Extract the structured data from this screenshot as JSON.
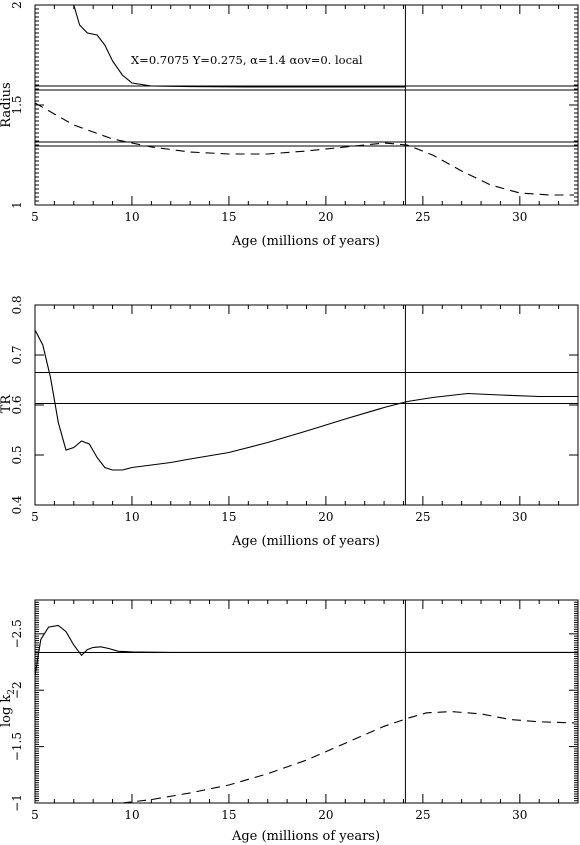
{
  "chart_data": [
    {
      "type": "line",
      "xlabel": "Age (millions of years)",
      "ylabel": "Radius",
      "xlim": [
        5,
        33
      ],
      "ylim": [
        1,
        2
      ],
      "xticks": [
        5,
        10,
        15,
        20,
        25,
        30
      ],
      "xtick_labels": [
        "5",
        "10",
        "15",
        "20",
        "25",
        "30"
      ],
      "yticks": [
        1,
        1.5,
        2
      ],
      "ytick_labels": [
        "1",
        "1.5",
        "2"
      ],
      "annotation": "X=0.7075   Y=0.275, α=1.4  αov=0. local",
      "series": [
        {
          "style": "solid",
          "x": [
            7.0,
            7.3,
            7.7,
            8.2,
            8.6,
            9.0,
            9.5,
            10.0,
            11.0,
            13.0,
            16.0,
            20.0,
            24.1
          ],
          "y": [
            2.0,
            1.9,
            1.86,
            1.85,
            1.8,
            1.72,
            1.65,
            1.61,
            1.595,
            1.592,
            1.59,
            1.59,
            1.59
          ]
        },
        {
          "style": "dashed",
          "x": [
            5,
            7,
            9,
            11,
            13,
            15,
            17,
            19,
            21,
            23,
            24.2,
            25.5,
            27,
            28.5,
            30,
            31.5,
            32.8
          ],
          "y": [
            1.51,
            1.4,
            1.33,
            1.29,
            1.265,
            1.255,
            1.255,
            1.27,
            1.29,
            1.31,
            1.3,
            1.25,
            1.17,
            1.1,
            1.06,
            1.05,
            1.05
          ]
        }
      ],
      "hlines": [
        1.595,
        1.575,
        1.315,
        1.295
      ],
      "vline": 24.1
    },
    {
      "type": "line",
      "xlabel": "Age (millions of years)",
      "ylabel": "TR",
      "xlim": [
        5,
        33
      ],
      "ylim": [
        0.4,
        0.8
      ],
      "xticks": [
        5,
        10,
        15,
        20,
        25,
        30
      ],
      "xtick_labels": [
        "5",
        "10",
        "15",
        "20",
        "25",
        "30"
      ],
      "yticks": [
        0.4,
        0.5,
        0.6,
        0.7,
        0.8
      ],
      "ytick_labels": [
        "0.4",
        "0.5",
        "0.6",
        "0.7",
        "0.8"
      ],
      "series": [
        {
          "style": "solid",
          "x": [
            5,
            5.4,
            5.8,
            6.2,
            6.6,
            7.0,
            7.4,
            7.8,
            8.2,
            8.6,
            9.0,
            9.5,
            10,
            11,
            12,
            13,
            15,
            17,
            19,
            21,
            23,
            24.2,
            25.5,
            27.3,
            29,
            31,
            33
          ],
          "y": [
            0.75,
            0.72,
            0.655,
            0.565,
            0.51,
            0.515,
            0.528,
            0.522,
            0.495,
            0.475,
            0.47,
            0.47,
            0.475,
            0.48,
            0.485,
            0.492,
            0.505,
            0.525,
            0.548,
            0.572,
            0.595,
            0.607,
            0.615,
            0.623,
            0.62,
            0.617,
            0.617
          ]
        }
      ],
      "hlines": [
        0.665,
        0.603
      ],
      "vline": 24.1
    },
    {
      "type": "line",
      "xlabel": "Age (millions of years)",
      "ylabel": "log k2",
      "xlim": [
        5,
        33
      ],
      "ylim": [
        -1,
        -2.8
      ],
      "xticks": [
        5,
        10,
        15,
        20,
        25,
        30
      ],
      "xtick_labels": [
        "5",
        "10",
        "15",
        "20",
        "25",
        "30"
      ],
      "yticks": [
        -1,
        -1.5,
        -2,
        -2.5
      ],
      "ytick_labels": [
        "−1",
        "−1.5",
        "−2",
        "−2.5"
      ],
      "series": [
        {
          "style": "solid",
          "x": [
            5,
            5.3,
            5.7,
            6.2,
            6.6,
            7.0,
            7.4,
            7.7,
            8.0,
            8.4,
            8.8,
            9.3,
            10,
            12,
            15,
            20,
            24.1,
            33
          ],
          "y": [
            -2.13,
            -2.45,
            -2.56,
            -2.575,
            -2.52,
            -2.4,
            -2.31,
            -2.36,
            -2.38,
            -2.385,
            -2.37,
            -2.345,
            -2.34,
            -2.335,
            -2.335,
            -2.335,
            -2.335,
            -2.335
          ]
        },
        {
          "style": "dashed",
          "x": [
            9.5,
            11,
            13,
            15,
            17,
            19,
            21,
            23,
            24.2,
            25.2,
            26.5,
            28,
            29.5,
            31,
            32.8
          ],
          "y": [
            -1.0,
            -1.03,
            -1.09,
            -1.16,
            -1.26,
            -1.38,
            -1.53,
            -1.68,
            -1.75,
            -1.8,
            -1.81,
            -1.79,
            -1.74,
            -1.72,
            -1.71
          ]
        }
      ],
      "hlines": [
        -2.335
      ],
      "vline": 24.1
    }
  ]
}
